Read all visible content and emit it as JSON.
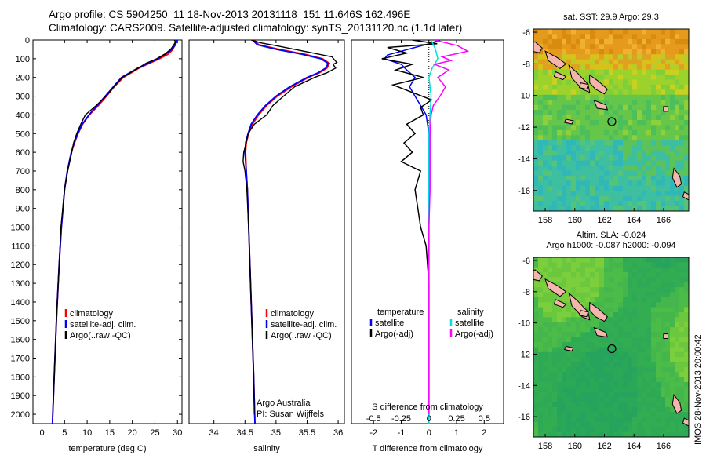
{
  "header": {
    "line1": "Argo profile: CS 5904250_11 18-Nov-2013 20131118_151 11.646S 162.496E",
    "line2": "Climatology: CARS2009. Satellite-adjusted climatology: synTS_20131120.nc (1.1d later)"
  },
  "credit": {
    "stamp": "IMOS 28-Nov-2013 20:00:42",
    "org": "Argo Australia",
    "pi": "PI: Susan Wijffels"
  },
  "colors": {
    "climatology": "#ff0000",
    "satellite": "#0000ff",
    "argo": "#000000",
    "salinity_satellite": "#00e0e0",
    "salinity_argo": "#ff00ff"
  },
  "chart_data": [
    {
      "type": "line",
      "id": "temperature",
      "xlabel": "temperature (deg C)",
      "xlim": [
        -2,
        31
      ],
      "ylim": [
        2050,
        0
      ],
      "xticks": [
        0,
        5,
        10,
        15,
        20,
        25,
        30
      ],
      "yticks": [
        0,
        100,
        200,
        300,
        400,
        500,
        600,
        700,
        800,
        900,
        1000,
        1100,
        1200,
        1300,
        1400,
        1500,
        1600,
        1700,
        1800,
        1900,
        2000
      ],
      "legend": {
        "position": "lower-left",
        "entries": [
          "climatology",
          "satellite-adj. clim.",
          "Argo(..raw -QC)"
        ]
      },
      "series": [
        {
          "name": "climatology",
          "color": "#ff0000",
          "depth": [
            0,
            25,
            50,
            75,
            100,
            150,
            200,
            250,
            300,
            350,
            400,
            450,
            500,
            550,
            600,
            700,
            800,
            1000,
            1200,
            1500,
            1800,
            2050
          ],
          "values": [
            29.6,
            29.4,
            29.0,
            28.0,
            26.0,
            21.5,
            18.0,
            16.0,
            14.3,
            12.5,
            10.5,
            9.0,
            8.0,
            7.2,
            6.5,
            5.6,
            5.0,
            4.3,
            3.8,
            3.2,
            2.7,
            2.3
          ]
        },
        {
          "name": "satellite-adj. clim.",
          "color": "#0000ff",
          "depth": [
            0,
            25,
            50,
            75,
            100,
            150,
            200,
            250,
            300,
            350,
            400,
            450,
            500,
            550,
            600,
            700,
            800,
            1000,
            1200,
            1500,
            1800,
            2050
          ],
          "values": [
            29.9,
            29.6,
            28.8,
            27.4,
            25.6,
            21.2,
            17.6,
            15.8,
            14.0,
            12.2,
            10.4,
            8.9,
            7.9,
            7.1,
            6.5,
            5.6,
            5.0,
            4.3,
            3.8,
            3.2,
            2.7,
            2.3
          ]
        },
        {
          "name": "Argo(..raw -QC)",
          "color": "#000000",
          "depth": [
            0,
            10,
            25,
            40,
            50,
            75,
            100,
            125,
            150,
            200,
            250,
            300,
            350,
            400,
            450,
            500,
            550,
            600,
            700,
            800,
            900,
            1000,
            1200,
            1500,
            1800,
            2000
          ],
          "values": [
            29.3,
            29.6,
            29.2,
            28.8,
            28.5,
            27.2,
            25.4,
            23.0,
            21.3,
            17.8,
            15.9,
            14.2,
            12.0,
            9.6,
            8.6,
            7.7,
            7.0,
            6.6,
            5.7,
            5.0,
            4.6,
            4.2,
            3.8,
            3.2,
            2.7,
            2.4
          ]
        }
      ]
    },
    {
      "type": "line",
      "id": "salinity",
      "xlabel": "salinity",
      "xlim": [
        33.6,
        36.1
      ],
      "ylim": [
        2050,
        0
      ],
      "xticks": [
        34,
        34.5,
        35,
        35.5,
        36
      ],
      "legend": {
        "position": "lower-right",
        "entries": [
          "climatology",
          "satellite-adj. clim.",
          "Argo(..raw -QC)"
        ]
      },
      "series": [
        {
          "name": "climatology",
          "color": "#ff0000",
          "depth": [
            0,
            25,
            50,
            75,
            100,
            125,
            150,
            175,
            200,
            250,
            300,
            350,
            400,
            450,
            500,
            550,
            600,
            700,
            800,
            1000,
            1200,
            1500,
            1800,
            2050
          ],
          "values": [
            34.65,
            34.72,
            35.05,
            35.45,
            35.75,
            35.86,
            35.82,
            35.7,
            35.52,
            35.25,
            35.02,
            34.85,
            34.72,
            34.62,
            34.56,
            34.52,
            34.51,
            34.52,
            34.54,
            34.56,
            34.58,
            34.61,
            34.64,
            34.66
          ]
        },
        {
          "name": "satellite-adj. clim.",
          "color": "#0000ff",
          "depth": [
            0,
            25,
            50,
            75,
            100,
            125,
            150,
            175,
            200,
            250,
            300,
            350,
            400,
            450,
            500,
            550,
            600,
            700,
            800,
            1000,
            1200,
            1500,
            1800,
            2050
          ],
          "values": [
            34.62,
            34.7,
            35.0,
            35.4,
            35.72,
            35.84,
            35.8,
            35.68,
            35.5,
            35.22,
            35.0,
            34.83,
            34.7,
            34.6,
            34.55,
            34.51,
            34.5,
            34.52,
            34.54,
            34.56,
            34.58,
            34.61,
            34.64,
            34.66
          ]
        },
        {
          "name": "Argo(..raw -QC)",
          "color": "#000000",
          "depth": [
            0,
            15,
            30,
            50,
            70,
            90,
            110,
            120,
            130,
            150,
            175,
            200,
            250,
            300,
            350,
            400,
            450,
            500,
            550,
            600,
            650,
            700,
            800,
            1000,
            1200,
            1500,
            1800,
            2000
          ],
          "values": [
            34.6,
            34.75,
            35.0,
            35.3,
            35.6,
            35.9,
            35.95,
            35.98,
            35.92,
            35.96,
            35.82,
            35.62,
            35.3,
            35.12,
            34.95,
            34.85,
            34.65,
            34.55,
            34.52,
            34.48,
            34.47,
            34.5,
            34.53,
            34.56,
            34.58,
            34.61,
            34.64,
            34.65
          ]
        }
      ]
    },
    {
      "type": "line",
      "id": "difference",
      "xlabel": "T difference from climatology",
      "xlabel_top": "S difference from climatology",
      "xlim": [
        -2.8,
        2.7
      ],
      "ylim": [
        2050,
        0
      ],
      "xticks": [
        -2,
        -1,
        0,
        1,
        2
      ],
      "xticks_s": [
        -0.5,
        -0.25,
        0,
        0.25,
        0.5
      ],
      "legend": {
        "position": "lower",
        "temperature_title": "temperature",
        "salinity_title": "salinity",
        "entries": [
          "satellite",
          "Argo(-adj)",
          "satellite",
          "Argo(-adj)"
        ]
      },
      "series": [
        {
          "name": "temperature satellite",
          "color": "#0000ff",
          "depth": [
            0,
            20,
            40,
            60,
            80,
            100,
            130,
            160,
            200,
            250,
            300,
            350,
            400,
            450,
            500,
            600,
            800,
            1000,
            1500,
            2050
          ],
          "values": [
            0.4,
            0.0,
            -0.5,
            -1.0,
            -1.5,
            -1.6,
            -1.0,
            -0.8,
            -0.5,
            -0.7,
            -0.5,
            -0.3,
            -0.1,
            -0.05,
            0.0,
            0.0,
            0.0,
            0.0,
            0.0,
            0.0
          ]
        },
        {
          "name": "temperature Argo(-adj)",
          "color": "#000000",
          "depth": [
            0,
            20,
            40,
            70,
            100,
            130,
            160,
            200,
            240,
            280,
            320,
            360,
            400,
            450,
            500,
            550,
            600,
            650,
            700,
            800,
            900,
            1000,
            1100,
            1300,
            1500,
            1800,
            2000
          ],
          "values": [
            -0.6,
            0.3,
            -1.5,
            -0.8,
            -1.7,
            -0.6,
            -1.2,
            -0.2,
            -1.3,
            -0.6,
            0.1,
            -0.3,
            -0.2,
            -0.8,
            -0.5,
            -0.9,
            -0.6,
            -1.0,
            -0.3,
            -0.5,
            -0.4,
            -0.3,
            -0.1,
            0.0,
            0.0,
            0.0,
            0.0
          ]
        },
        {
          "name": "salinity satellite",
          "color": "#00e0e0",
          "depth": [
            0,
            50,
            100,
            150,
            200,
            300,
            400,
            500,
            700,
            1000,
            1500,
            2050
          ],
          "values": [
            0.02,
            0.06,
            0.08,
            0.03,
            0.0,
            0.02,
            0.01,
            0.0,
            0.0,
            0.0,
            0.0,
            0.0
          ]
        },
        {
          "name": "salinity Argo(-adj)",
          "color": "#ff00ff",
          "depth": [
            0,
            30,
            60,
            90,
            110,
            130,
            160,
            200,
            250,
            300,
            350,
            400,
            500,
            600,
            800,
            1000,
            1500,
            2000
          ],
          "values": [
            0.05,
            0.26,
            0.35,
            0.12,
            0.2,
            0.05,
            0.18,
            0.08,
            0.15,
            0.1,
            0.04,
            0.02,
            0.01,
            0.01,
            0.01,
            0.0,
            0.0,
            0.0
          ]
        }
      ]
    },
    {
      "type": "heatmap",
      "id": "sst-map",
      "title": "sat. SST: 29.9  Argo: 29.3",
      "xlim": [
        157.2,
        167.7
      ],
      "ylim": [
        -17.3,
        -5.8
      ],
      "xticks": [
        158,
        160,
        162,
        164,
        166
      ],
      "yticks": [
        -6,
        -8,
        -10,
        -12,
        -14,
        -16
      ],
      "marker": {
        "lon": 162.5,
        "lat": -11.65
      }
    },
    {
      "type": "heatmap",
      "id": "sla-map",
      "title": "Altim. SLA: -0.024",
      "subtitle": "Argo h1000: -0.087  h2000: -0.094",
      "xlim": [
        157.2,
        167.7
      ],
      "ylim": [
        -17.3,
        -5.8
      ],
      "xticks": [
        158,
        160,
        162,
        164,
        166
      ],
      "yticks": [
        -6,
        -8,
        -10,
        -12,
        -14,
        -16
      ],
      "marker": {
        "lon": 162.5,
        "lat": -11.65
      }
    }
  ]
}
